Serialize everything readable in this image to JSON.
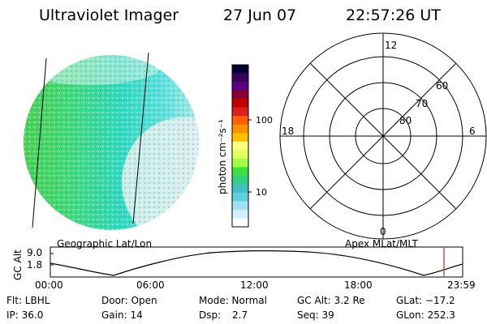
{
  "header": {
    "title": "Ultraviolet Imager",
    "date": "27 Jun 07",
    "time": "22:57:26 UT"
  },
  "colorbar": {
    "unit_label": "photon cm⁻²s⁻¹",
    "ticks": [
      "100",
      "10"
    ],
    "colors": [
      "#000033",
      "#3a0060",
      "#5a0080",
      "#8a0030",
      "#c00000",
      "#e02020",
      "#ff6000",
      "#ff9000",
      "#ffc000",
      "#ffff80",
      "#e0ff60",
      "#a0ff40",
      "#40e040",
      "#30d080",
      "#40c0c0",
      "#60d0e0",
      "#a0e0f0",
      "#d0f0ff",
      "#ffffff"
    ]
  },
  "polar_plot": {
    "lat_labels": [
      "80",
      "70",
      "60"
    ],
    "mlt_labels": {
      "top": "12",
      "left": "18",
      "right": "6",
      "bottom": "0"
    }
  },
  "track_plot": {
    "left_title": "Geographic Lat/Lon",
    "right_title": "Apex  MLat/MLT",
    "y_axis_label": "GC Alt",
    "y_ticks": [
      "9.0",
      "1.8"
    ],
    "x_ticks": [
      "00:00",
      "06:00",
      "12:00",
      "18:00",
      "23:59"
    ],
    "current_marker_color": "#cc2222"
  },
  "status": {
    "flt": "Flt: LBHL",
    "ip": "IP: 36.0",
    "door": "Door: Open",
    "gain": "Gain: 14",
    "mode": "Mode: Normal",
    "dsp_label": "Dsp:",
    "dsp_value": "2.7",
    "gc_alt": "GC Alt: 3.2 Re",
    "seq": "Seq: 39",
    "glat": "GLat: −17.2",
    "glon": "GLon: 252.3"
  }
}
